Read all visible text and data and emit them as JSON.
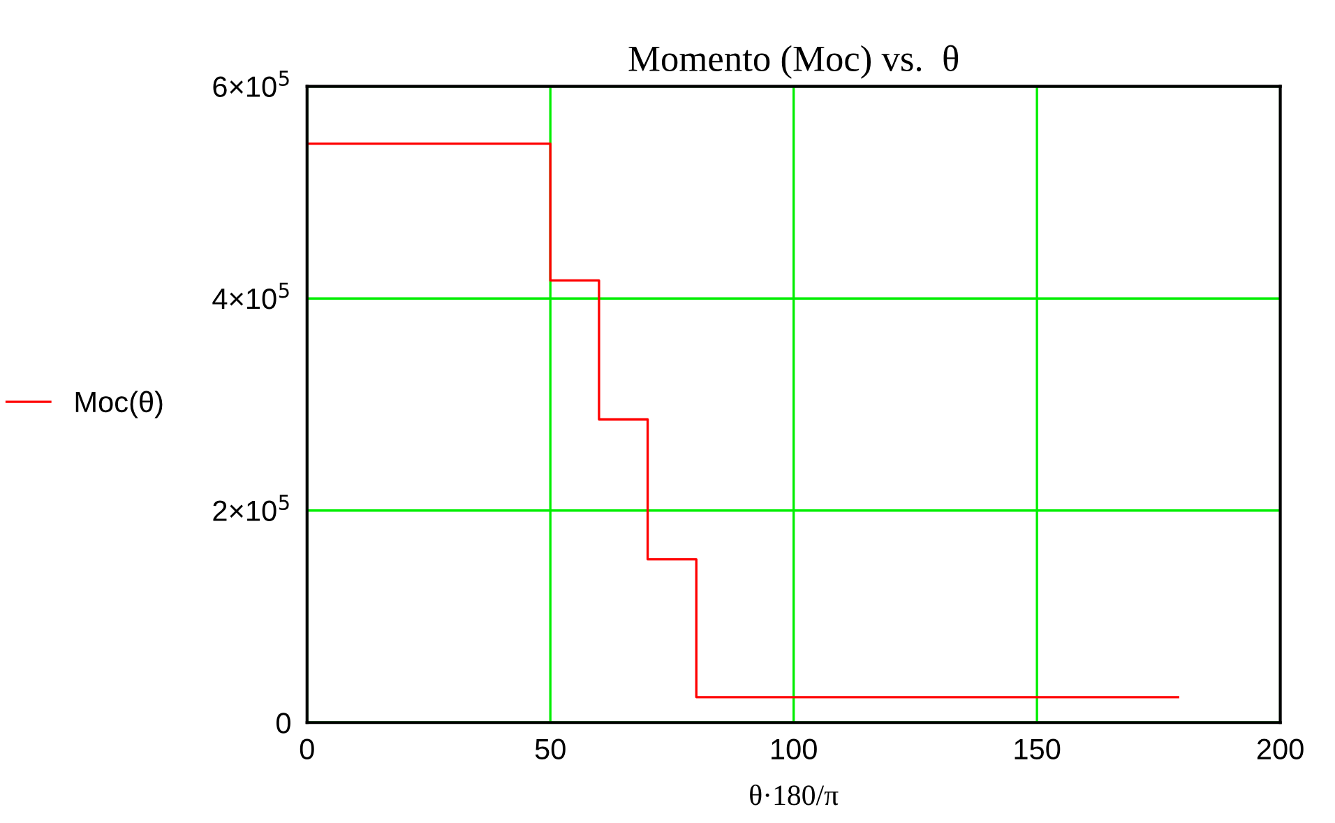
{
  "chart_data": {
    "type": "step",
    "title": "Momento (Moc) vs.  θ",
    "xlabel": "θ·180/π",
    "x": [
      0,
      50,
      60,
      70,
      80,
      179
    ],
    "series": [
      {
        "name": "Moc(θ)",
        "color": "#ff0000",
        "values": [
          546000,
          417000,
          286000,
          154000,
          24000,
          24000
        ]
      }
    ],
    "xlim": [
      0,
      200
    ],
    "xticks": [
      0,
      50,
      100,
      150,
      200
    ],
    "ylim": [
      0,
      600000
    ],
    "yticks": [
      0,
      {
        "value": 200000,
        "label": "2×10$^{5}$"
      },
      {
        "value": 400000,
        "label": "4×10$^{5}$"
      },
      {
        "value": 600000,
        "label": "6×10$^{5}$"
      }
    ],
    "grid": true,
    "legend": "left"
  }
}
